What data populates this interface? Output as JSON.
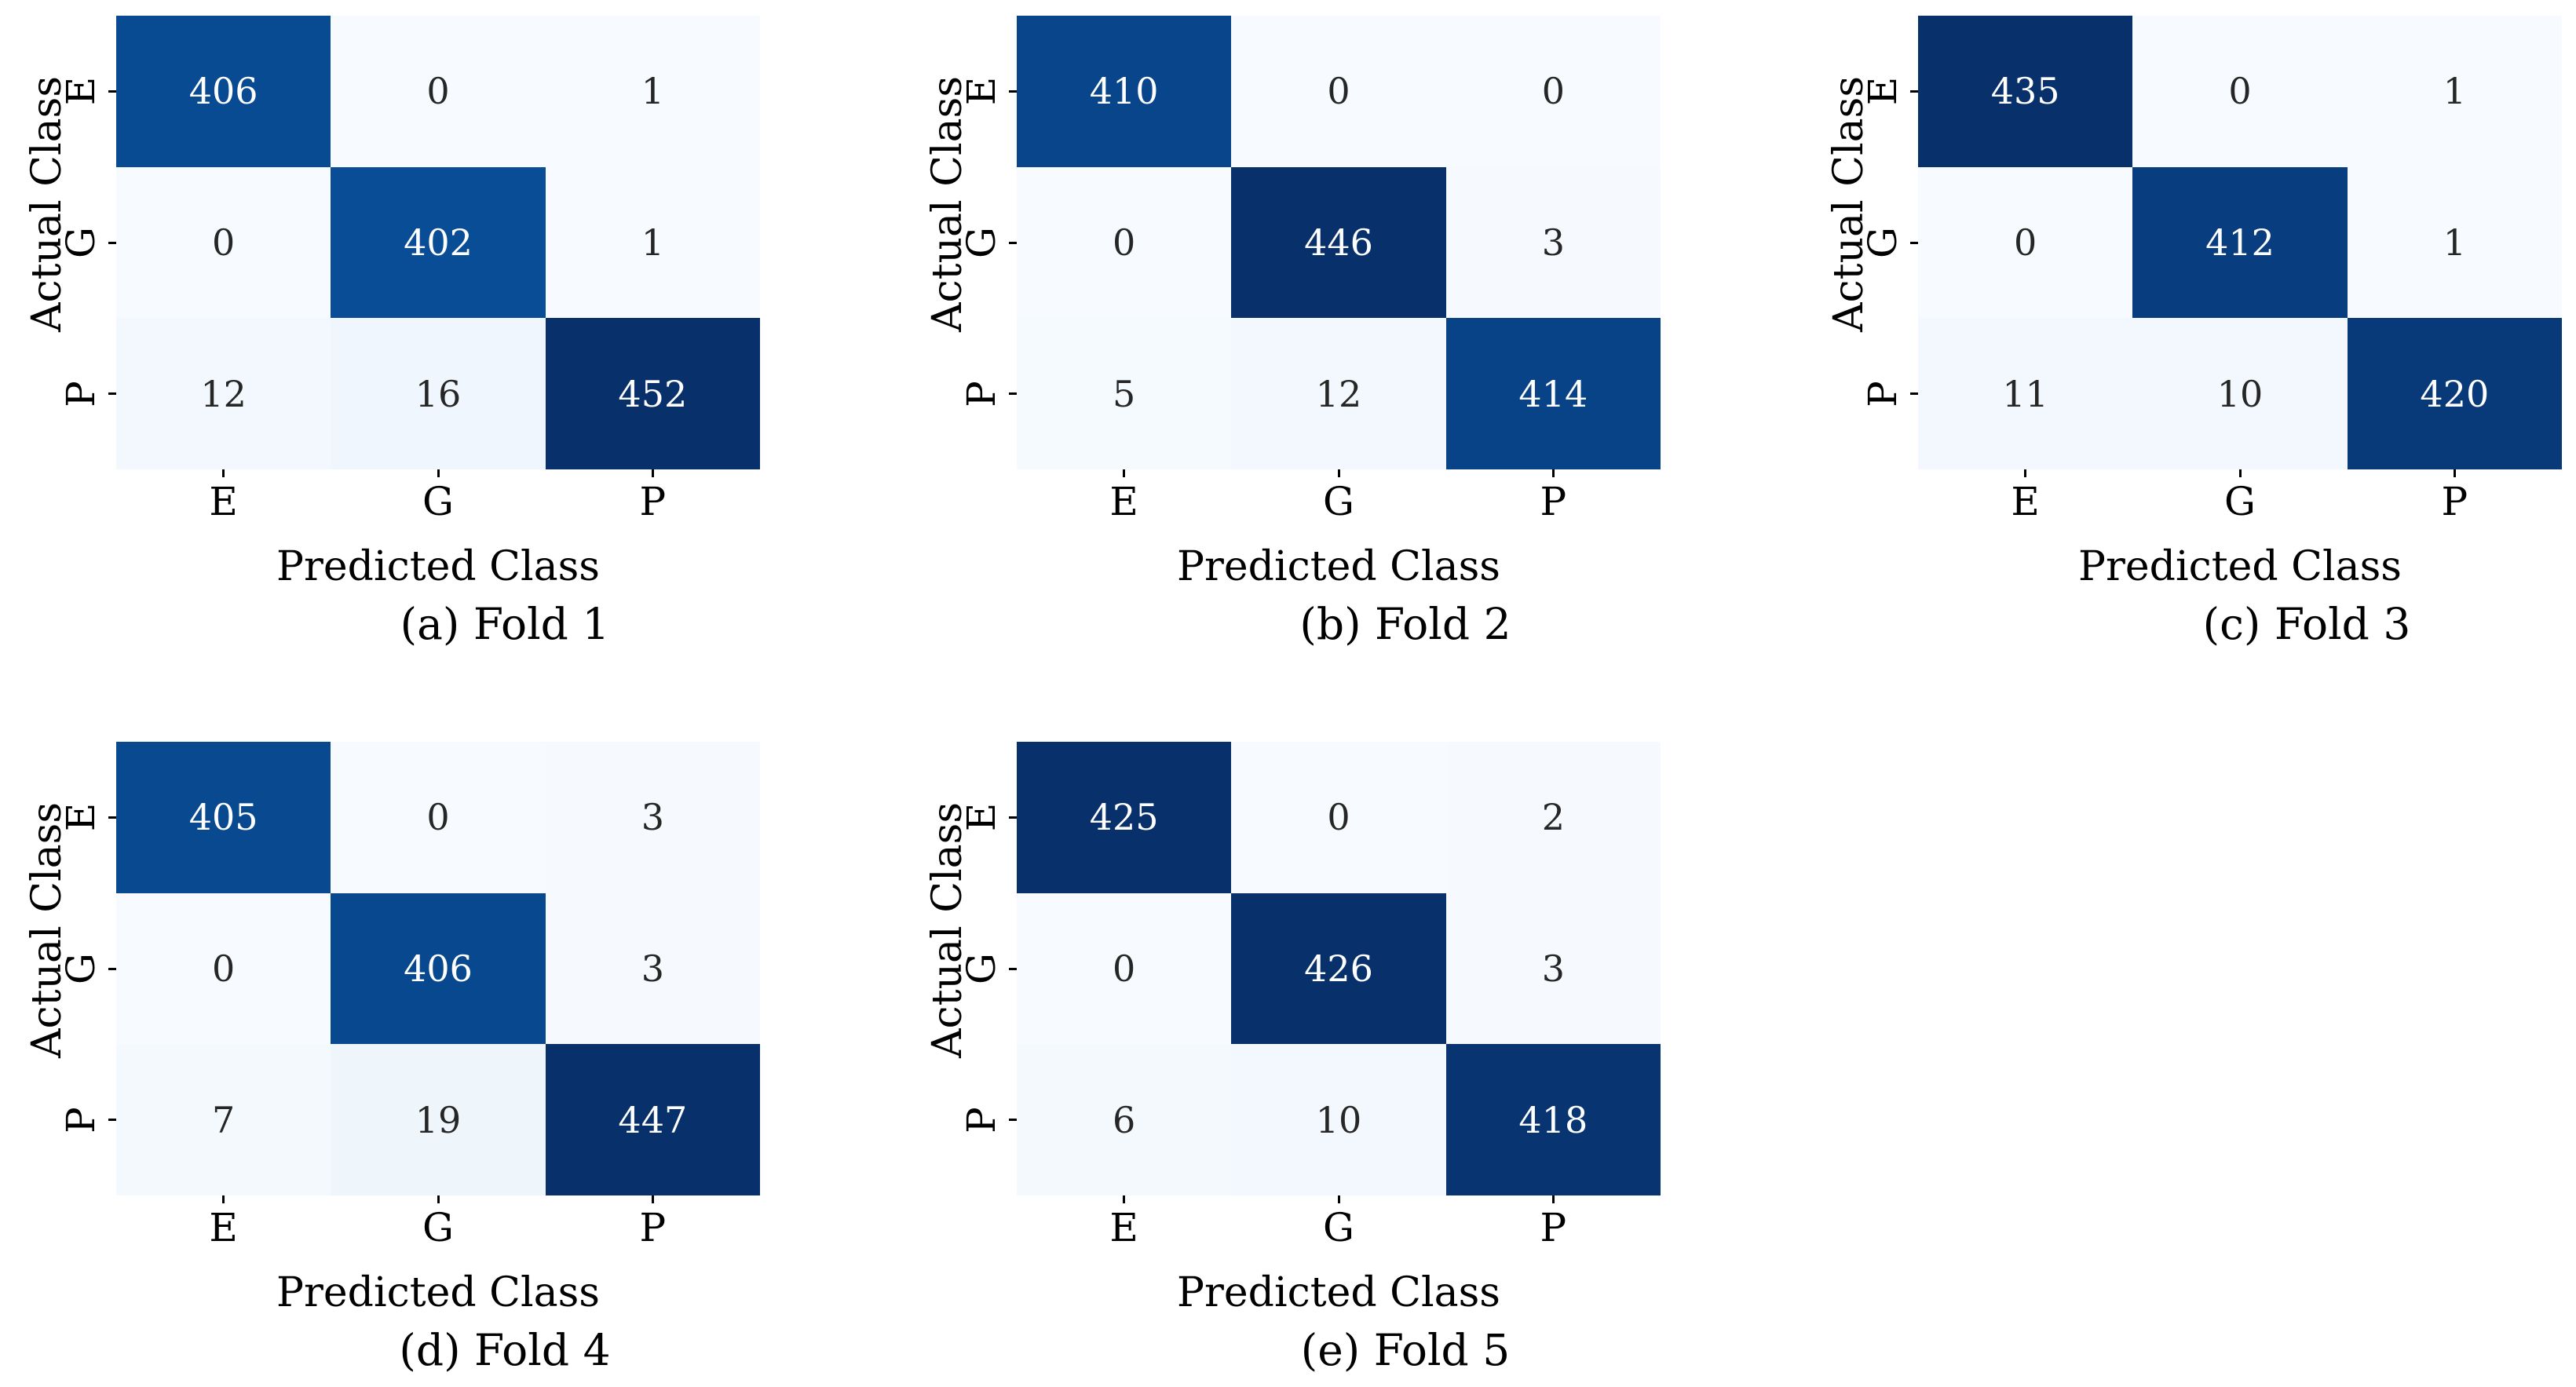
{
  "figure": {
    "background": "#ffffff",
    "xlabel": "Predicted Class",
    "ylabel": "Actual Class",
    "tick_labels": [
      "E",
      "G",
      "P"
    ],
    "colormap": {
      "name": "Blues",
      "stops": [
        "#f7fbff",
        "#deebf7",
        "#c6dbef",
        "#9ecae1",
        "#6baed6",
        "#4292c6",
        "#2171b5",
        "#08519c",
        "#08306b"
      ]
    },
    "annotation_colors": {
      "dark_text": "#262626",
      "light_text": "#ffffff",
      "axis_text": "#000000"
    }
  },
  "chart_data": [
    {
      "type": "heatmap",
      "title": "(a) Fold 1",
      "xlabel": "Predicted Class",
      "ylabel": "Actual Class",
      "x_categories": [
        "E",
        "G",
        "P"
      ],
      "y_categories": [
        "E",
        "G",
        "P"
      ],
      "matrix": [
        [
          406,
          0,
          1
        ],
        [
          0,
          402,
          1
        ],
        [
          12,
          16,
          452
        ]
      ],
      "vmin": 0,
      "vmax": 452
    },
    {
      "type": "heatmap",
      "title": "(b) Fold 2",
      "xlabel": "Predicted Class",
      "ylabel": "Actual Class",
      "x_categories": [
        "E",
        "G",
        "P"
      ],
      "y_categories": [
        "E",
        "G",
        "P"
      ],
      "matrix": [
        [
          410,
          0,
          0
        ],
        [
          0,
          446,
          3
        ],
        [
          5,
          12,
          414
        ]
      ],
      "vmin": 0,
      "vmax": 446
    },
    {
      "type": "heatmap",
      "title": "(c) Fold 3",
      "xlabel": "Predicted Class",
      "ylabel": "Actual Class",
      "x_categories": [
        "E",
        "G",
        "P"
      ],
      "y_categories": [
        "E",
        "G",
        "P"
      ],
      "matrix": [
        [
          435,
          0,
          1
        ],
        [
          0,
          412,
          1
        ],
        [
          11,
          10,
          420
        ]
      ],
      "vmin": 0,
      "vmax": 435
    },
    {
      "type": "heatmap",
      "title": "(d) Fold 4",
      "xlabel": "Predicted Class",
      "ylabel": "Actual Class",
      "x_categories": [
        "E",
        "G",
        "P"
      ],
      "y_categories": [
        "E",
        "G",
        "P"
      ],
      "matrix": [
        [
          405,
          0,
          3
        ],
        [
          0,
          406,
          3
        ],
        [
          7,
          19,
          447
        ]
      ],
      "vmin": 0,
      "vmax": 447
    },
    {
      "type": "heatmap",
      "title": "(e) Fold 5",
      "xlabel": "Predicted Class",
      "ylabel": "Actual Class",
      "x_categories": [
        "E",
        "G",
        "P"
      ],
      "y_categories": [
        "E",
        "G",
        "P"
      ],
      "matrix": [
        [
          425,
          0,
          2
        ],
        [
          0,
          426,
          3
        ],
        [
          6,
          10,
          418
        ]
      ],
      "vmin": 0,
      "vmax": 426
    }
  ]
}
